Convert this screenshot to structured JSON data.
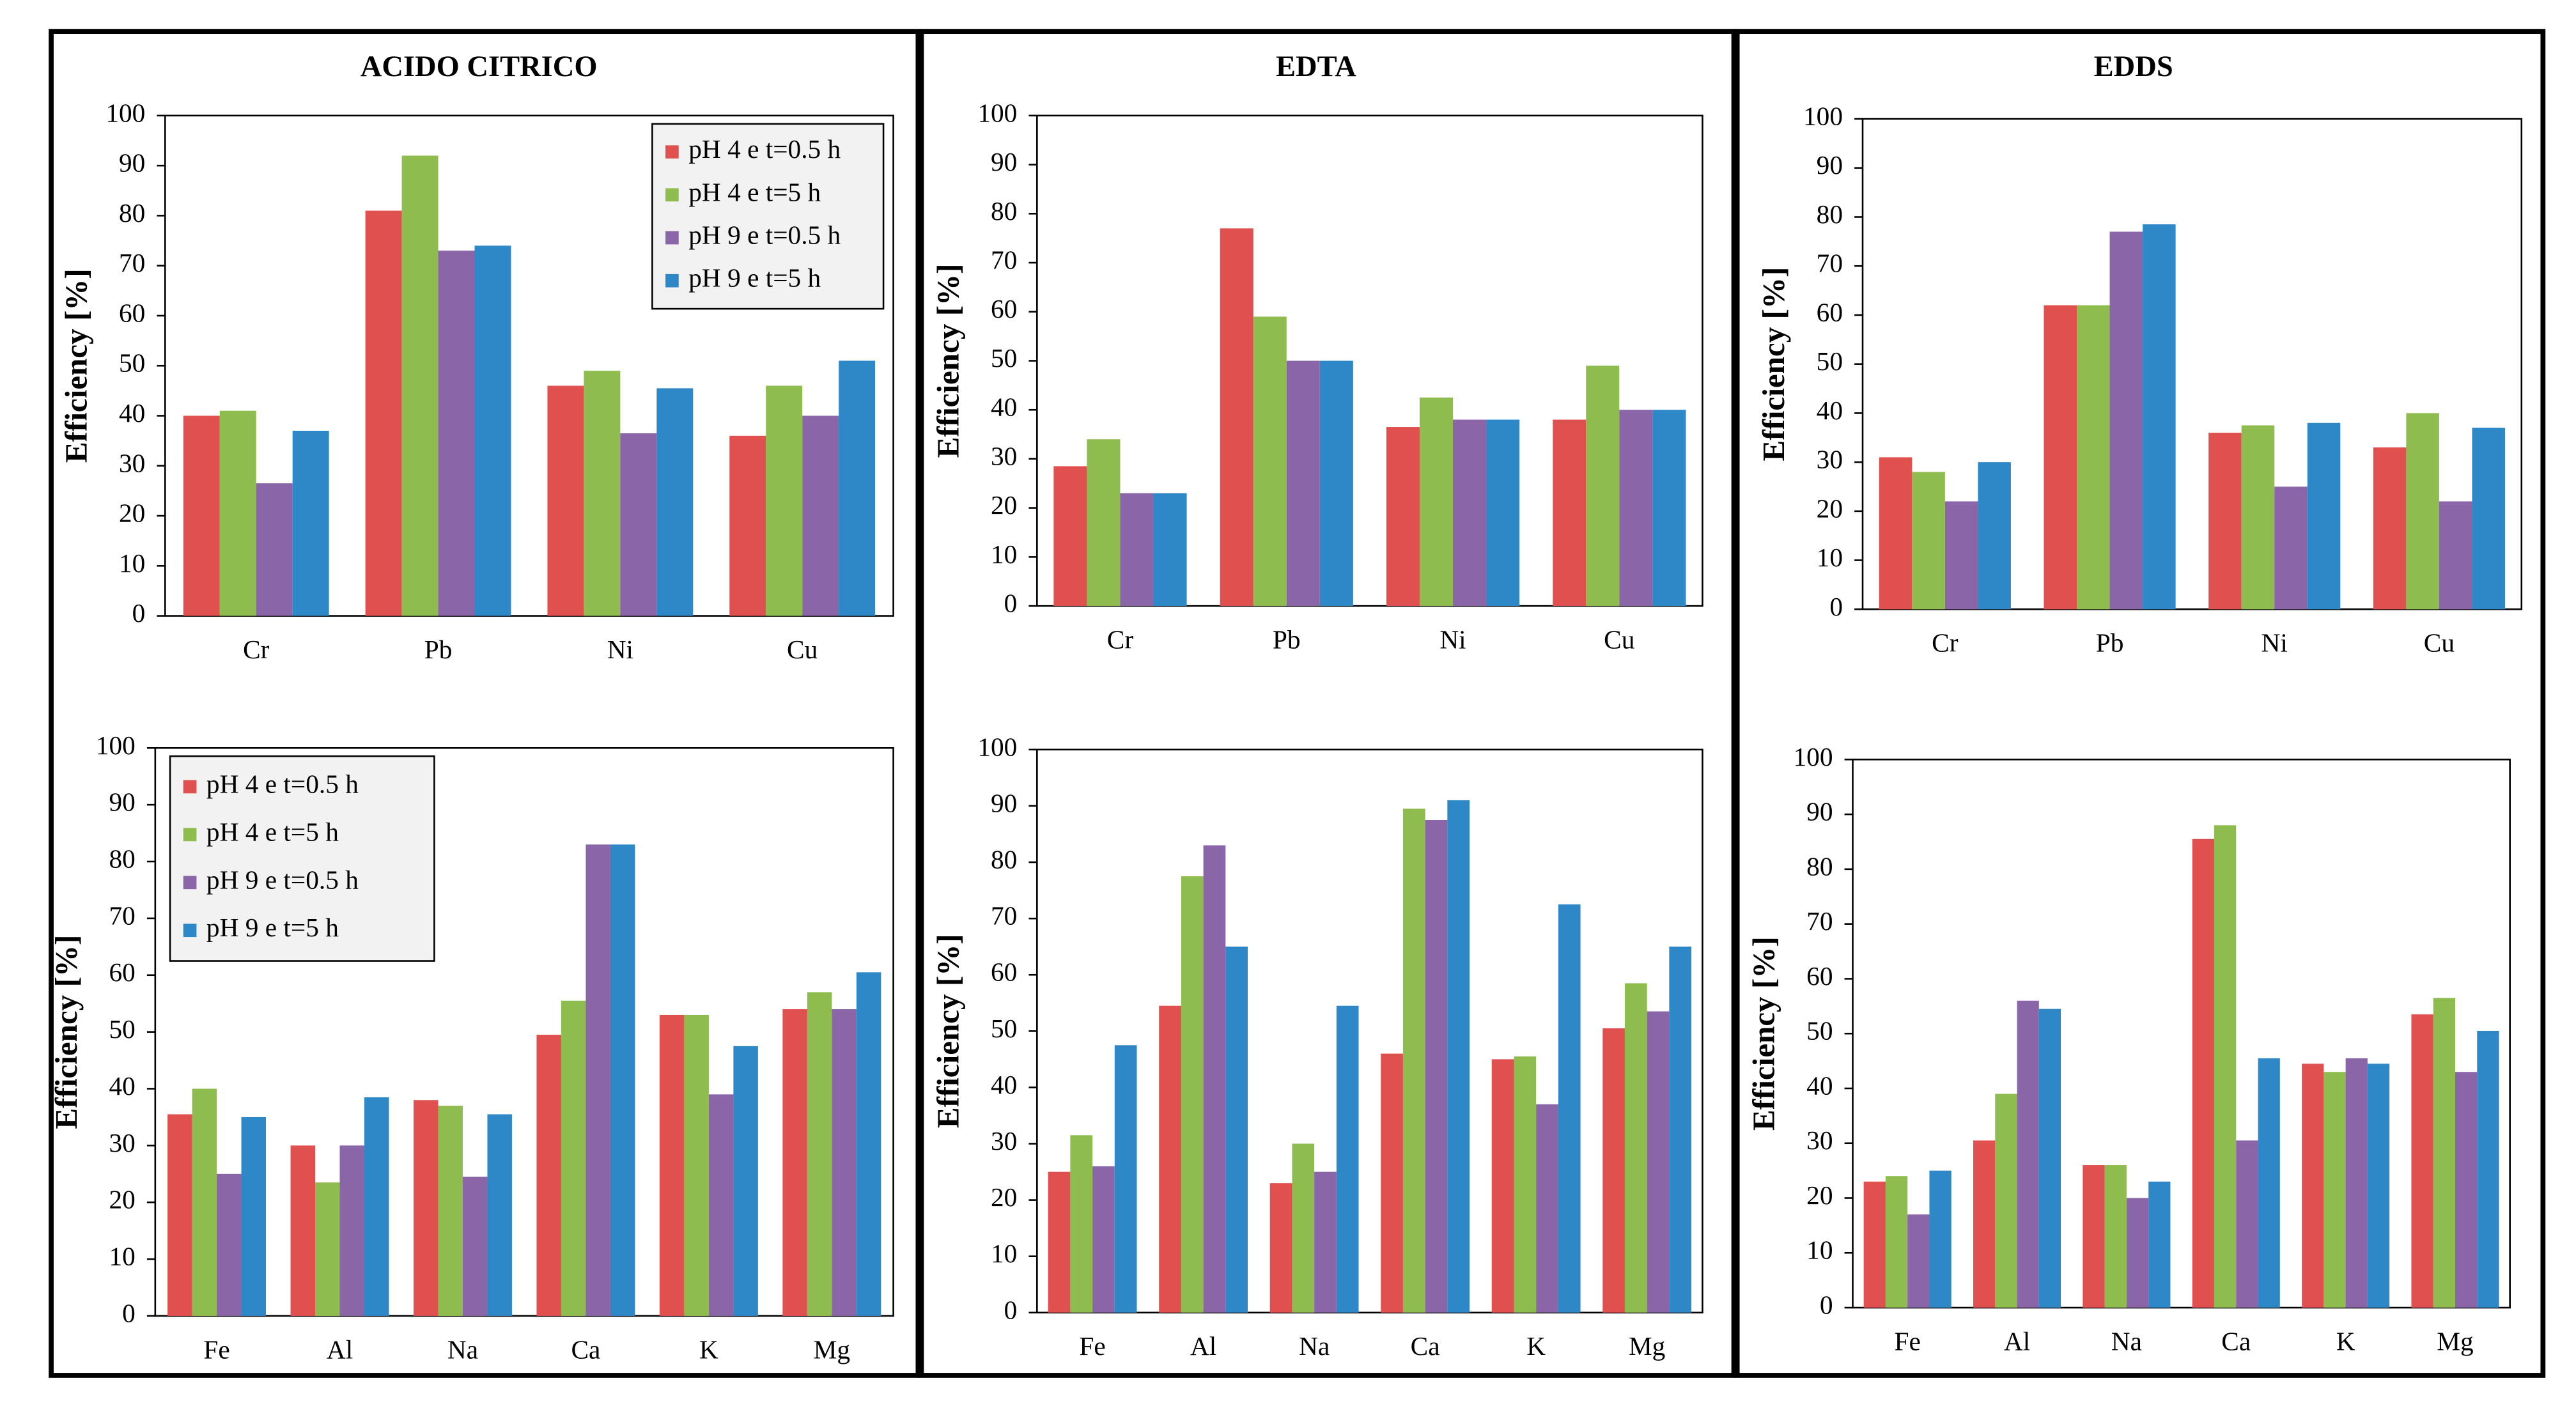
{
  "chart_data": [
    {
      "type": "bar",
      "title": "ACIDO CITRICO",
      "ylabel": "Efficiency [%]",
      "categories": [
        "Cr",
        "Pb",
        "Ni",
        "Cu"
      ],
      "series": [
        {
          "name": "pH 4 e t=0.5 h",
          "color": "#e0504f",
          "values": [
            40,
            81,
            46,
            36
          ]
        },
        {
          "name": "pH 4 e t=5 h",
          "color": "#8fbc4f",
          "values": [
            41,
            92,
            49,
            46
          ]
        },
        {
          "name": "pH 9 e t=0.5 h",
          "color": "#8a66a8",
          "values": [
            26.5,
            73,
            36.5,
            40
          ]
        },
        {
          "name": "pH 9 e t=5 h",
          "color": "#2e88c8",
          "values": [
            37,
            74,
            45.5,
            51
          ]
        }
      ],
      "ylim": [
        0,
        100
      ],
      "yticks": [
        0,
        10,
        20,
        30,
        40,
        50,
        60,
        70,
        80,
        90,
        100
      ],
      "legend": "upper right"
    },
    {
      "type": "bar",
      "title": "EDTA",
      "ylabel": "Efficiency [%]",
      "categories": [
        "Cr",
        "Pb",
        "Ni",
        "Cu"
      ],
      "series": [
        {
          "color": "#e0504f",
          "values": [
            28.5,
            77,
            36.5,
            38
          ]
        },
        {
          "color": "#8fbc4f",
          "values": [
            34,
            59,
            42.5,
            49
          ]
        },
        {
          "color": "#8a66a8",
          "values": [
            23,
            50,
            38,
            40
          ]
        },
        {
          "color": "#2e88c8",
          "values": [
            23,
            50,
            38,
            40
          ]
        }
      ],
      "ylim": [
        0,
        100
      ],
      "yticks": [
        0,
        10,
        20,
        30,
        40,
        50,
        60,
        70,
        80,
        90,
        100
      ]
    },
    {
      "type": "bar",
      "title": "EDDS",
      "ylabel": "Efficiency [%]",
      "categories": [
        "Cr",
        "Pb",
        "Ni",
        "Cu"
      ],
      "series": [
        {
          "color": "#e0504f",
          "values": [
            31,
            62,
            36,
            33
          ]
        },
        {
          "color": "#8fbc4f",
          "values": [
            28,
            62,
            37.5,
            40
          ]
        },
        {
          "color": "#8a66a8",
          "values": [
            22,
            77,
            25,
            22
          ]
        },
        {
          "color": "#2e88c8",
          "values": [
            30,
            78.5,
            38,
            37
          ]
        }
      ],
      "ylim": [
        0,
        100
      ],
      "yticks": [
        0,
        10,
        20,
        30,
        40,
        50,
        60,
        70,
        80,
        90,
        100
      ]
    },
    {
      "type": "bar",
      "ylabel": "Efficiency [%]",
      "categories": [
        "Fe",
        "Al",
        "Na",
        "Ca",
        "K",
        "Mg"
      ],
      "series": [
        {
          "name": "pH 4 e t=0.5 h",
          "color": "#e0504f",
          "values": [
            35.5,
            30,
            38,
            49.5,
            53,
            54
          ]
        },
        {
          "name": "pH 4 e t=5 h",
          "color": "#8fbc4f",
          "values": [
            40,
            23.5,
            37,
            55.5,
            53,
            57
          ]
        },
        {
          "name": "pH 9 e t=0.5 h",
          "color": "#8a66a8",
          "values": [
            25,
            30,
            24.5,
            83,
            39,
            54
          ]
        },
        {
          "name": "pH 9 e t=5 h",
          "color": "#2e88c8",
          "values": [
            35,
            38.5,
            35.5,
            83,
            47.5,
            60.5
          ]
        }
      ],
      "ylim": [
        0,
        100
      ],
      "yticks": [
        0,
        10,
        20,
        30,
        40,
        50,
        60,
        70,
        80,
        90,
        100
      ],
      "legend": "upper left"
    },
    {
      "type": "bar",
      "ylabel": "Efficiency [%]",
      "categories": [
        "Fe",
        "Al",
        "Na",
        "Ca",
        "K",
        "Mg"
      ],
      "series": [
        {
          "color": "#e0504f",
          "values": [
            25,
            54.5,
            23,
            46,
            45,
            50.5
          ]
        },
        {
          "color": "#8fbc4f",
          "values": [
            31.5,
            77.5,
            30,
            89.5,
            45.5,
            58.5
          ]
        },
        {
          "color": "#8a66a8",
          "values": [
            26,
            83,
            25,
            87.5,
            37,
            53.5
          ]
        },
        {
          "color": "#2e88c8",
          "values": [
            47.5,
            65,
            54.5,
            91,
            72.5,
            65
          ]
        }
      ],
      "ylim": [
        0,
        100
      ],
      "yticks": [
        0,
        10,
        20,
        30,
        40,
        50,
        60,
        70,
        80,
        90,
        100
      ]
    },
    {
      "type": "bar",
      "ylabel": "Efficiency [%]",
      "categories": [
        "Fe",
        "Al",
        "Na",
        "Ca",
        "K",
        "Mg"
      ],
      "series": [
        {
          "color": "#e0504f",
          "values": [
            23,
            30.5,
            26,
            85.5,
            44.5,
            53.5
          ]
        },
        {
          "color": "#8fbc4f",
          "values": [
            24,
            39,
            26,
            88,
            43,
            56.5
          ]
        },
        {
          "color": "#8a66a8",
          "values": [
            17,
            56,
            20,
            30.5,
            45.5,
            43
          ]
        },
        {
          "color": "#2e88c8",
          "values": [
            25,
            54.5,
            23,
            45.5,
            44.5,
            50.5
          ]
        }
      ],
      "ylim": [
        0,
        100
      ],
      "yticks": [
        0,
        10,
        20,
        30,
        40,
        50,
        60,
        70,
        80,
        90,
        100
      ]
    }
  ]
}
